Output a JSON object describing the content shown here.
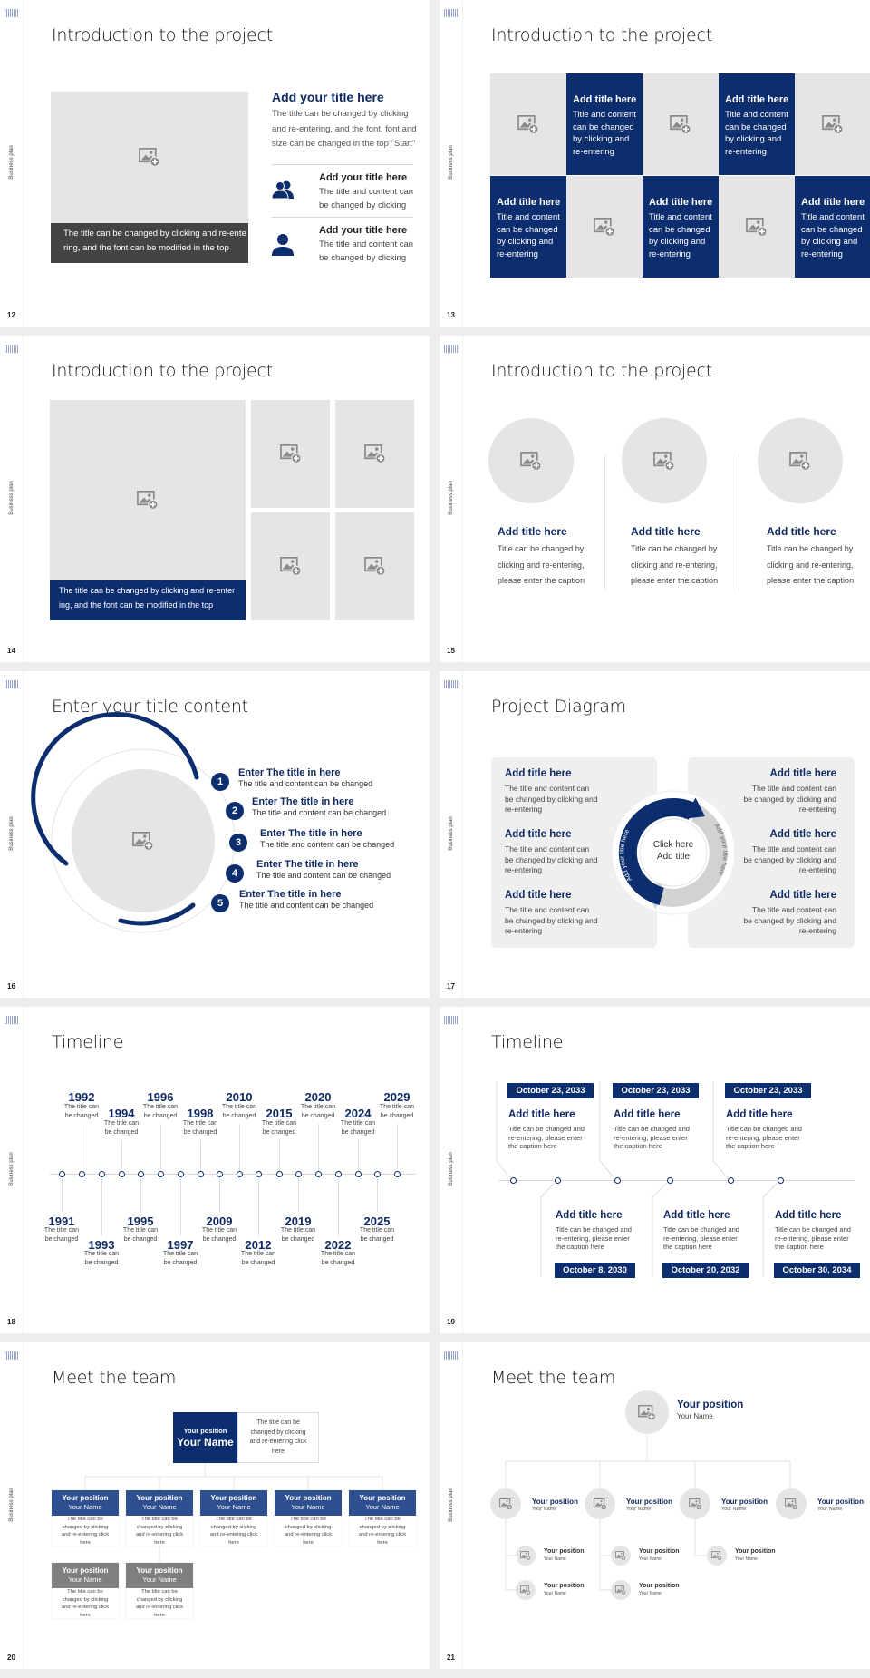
{
  "deck": {
    "side_label": "Business plan",
    "colors": {
      "navy": "#0c2d6e",
      "slate": "#2f5090",
      "placeholder": "#e6e4e4",
      "gray_header": "#7f7f7f"
    }
  },
  "s12": {
    "page": "12",
    "title": "Introduction to the project",
    "caption": [
      "The title can be changed by clicking and re-ente",
      "ring, and the font can be modified in the top"
    ],
    "heading": "Add your title here",
    "body": [
      "The title can be changed by clicking",
      "and re-entering, and the font, font and",
      "size can be changed in the top \"Start\""
    ],
    "items": [
      {
        "icon": "users-icon",
        "title": "Add your title here",
        "text": [
          "The title and content can",
          "be changed by clicking"
        ]
      },
      {
        "icon": "user-icon",
        "title": "Add your title here",
        "text": [
          "The title and content can",
          "be changed by clicking"
        ]
      }
    ]
  },
  "s13": {
    "page": "13",
    "title": "Introduction to the project",
    "card": {
      "title": "Add title here",
      "text": [
        "Title and content",
        "can be changed",
        "by clicking and",
        "re-entering"
      ]
    }
  },
  "s14": {
    "page": "14",
    "title": "Introduction to the project",
    "caption": [
      "The title can be changed by clicking and re-enter",
      "ing, and the font can be modified in the top"
    ]
  },
  "s15": {
    "page": "15",
    "title": "Introduction to the project",
    "cols": [
      {
        "title": "Add title here",
        "text": [
          "Title can be changed by",
          "clicking and re-entering,",
          "please enter the caption"
        ]
      },
      {
        "title": "Add title here",
        "text": [
          "Title can be changed by",
          "clicking and re-entering,",
          "please enter the caption"
        ]
      },
      {
        "title": "Add title here",
        "text": [
          "Title can be changed by",
          "clicking and re-entering,",
          "please enter the caption"
        ]
      }
    ]
  },
  "s16": {
    "page": "16",
    "title": "Enter your title content",
    "items": [
      {
        "num": "1",
        "title": "Enter The title in here",
        "text": "The title and content can be changed"
      },
      {
        "num": "2",
        "title": "Enter The title in here",
        "text": "The title and content can be changed"
      },
      {
        "num": "3",
        "title": "Enter The title in here",
        "text": "The title and content can be changed"
      },
      {
        "num": "4",
        "title": "Enter The title in here",
        "text": "The title and content can be changed"
      },
      {
        "num": "5",
        "title": "Enter The title in here",
        "text": "The title and content can be changed"
      }
    ]
  },
  "s17": {
    "page": "17",
    "title": "Project Diagram",
    "center": [
      "Click here",
      "Add title"
    ],
    "arc_left": "Add your title here",
    "arc_right": "Add your title here",
    "left": [
      {
        "title": "Add title here",
        "text": [
          "The title and content can",
          "be changed by clicking and",
          "re-entering"
        ]
      },
      {
        "title": "Add title here",
        "text": [
          "The title and content can",
          "be changed by clicking and",
          "re-entering"
        ]
      },
      {
        "title": "Add title here",
        "text": [
          "The title and content can",
          "be changed by clicking and",
          "re-entering"
        ]
      }
    ],
    "right": [
      {
        "title": "Add title here",
        "text": [
          "The title and content can",
          "be changed by clicking and",
          "re-entering"
        ]
      },
      {
        "title": "Add title here",
        "text": [
          "The title and content can",
          "be changed by clicking and",
          "re-entering"
        ]
      },
      {
        "title": "Add title here",
        "text": [
          "The title and content can",
          "be changed by clicking and",
          "re-entering"
        ]
      }
    ]
  },
  "s18": {
    "page": "18",
    "title": "Timeline",
    "events": [
      {
        "year": "1991",
        "text": [
          "The title can",
          "be changed"
        ]
      },
      {
        "year": "1992",
        "text": [
          "The title can",
          "be changed"
        ]
      },
      {
        "year": "1993",
        "text": [
          "The title can",
          "be changed"
        ]
      },
      {
        "year": "1994",
        "text": [
          "The title can",
          "be changed"
        ]
      },
      {
        "year": "1995",
        "text": [
          "The title can",
          "be changed"
        ]
      },
      {
        "year": "1996",
        "text": [
          "The title can",
          "be changed"
        ]
      },
      {
        "year": "1997",
        "text": [
          "The title can",
          "be changed"
        ]
      },
      {
        "year": "1998",
        "text": [
          "The title can",
          "be changed"
        ]
      },
      {
        "year": "2009",
        "text": [
          "The title can",
          "be changed"
        ]
      },
      {
        "year": "2010",
        "text": [
          "The title can",
          "be changed"
        ]
      },
      {
        "year": "2012",
        "text": [
          "The title can",
          "be changed"
        ]
      },
      {
        "year": "2015",
        "text": [
          "The title can",
          "be changed"
        ]
      },
      {
        "year": "2019",
        "text": [
          "The title can",
          "be changed"
        ]
      },
      {
        "year": "2020",
        "text": [
          "The title can",
          "be changed"
        ]
      },
      {
        "year": "2022",
        "text": [
          "The title can",
          "be changed"
        ]
      },
      {
        "year": "2024",
        "text": [
          "The title can",
          "be changed"
        ]
      },
      {
        "year": "2025",
        "text": [
          "The title can",
          "be changed"
        ]
      },
      {
        "year": "2029",
        "text": [
          "The title can",
          "be changed"
        ]
      }
    ]
  },
  "s19": {
    "page": "19",
    "title": "Timeline",
    "top": [
      {
        "date": "October 23, 2033",
        "title": "Add title here",
        "text": [
          "Title can be changed and",
          "re-entering, please enter",
          "the caption here"
        ]
      },
      {
        "date": "October 23, 2033",
        "title": "Add title here",
        "text": [
          "Title can be changed and",
          "re-entering, please enter",
          "the caption here"
        ]
      },
      {
        "date": "October 23, 2033",
        "title": "Add title here",
        "text": [
          "Title can be changed and",
          "re-entering, please enter",
          "the caption here"
        ]
      }
    ],
    "bottom": [
      {
        "date": "October 8, 2030",
        "title": "Add title here",
        "text": [
          "Title can be changed and",
          "re-entering, please enter",
          "the caption here"
        ]
      },
      {
        "date": "October 20, 2032",
        "title": "Add title here",
        "text": [
          "Title can be changed and",
          "re-entering, please enter",
          "the caption here"
        ]
      },
      {
        "date": "October 30, 2034",
        "title": "Add title here",
        "text": [
          "Title can be changed and",
          "re-entering, please enter",
          "the caption here"
        ]
      }
    ]
  },
  "s20": {
    "page": "20",
    "title": "Meet the team",
    "lead": {
      "position": "Your position",
      "name": "Your Name",
      "note": [
        "The title can be",
        "changed by clicking",
        "and re-entering click",
        "here"
      ]
    },
    "members": [
      {
        "position": "Your position",
        "name": "Your Name",
        "note": [
          "The title can be",
          "changed by clicking",
          "and re-entering click",
          "here"
        ]
      },
      {
        "position": "Your position",
        "name": "Your Name",
        "note": [
          "The title can be",
          "changed by clicking",
          "and re-entering click",
          "here"
        ]
      },
      {
        "position": "Your position",
        "name": "Your Name",
        "note": [
          "The title can be",
          "changed by clicking",
          "and re-entering click",
          "here"
        ]
      },
      {
        "position": "Your position",
        "name": "Your Name",
        "note": [
          "The title can be",
          "changed by clicking",
          "and re-entering click",
          "here"
        ]
      },
      {
        "position": "Your position",
        "name": "Your Name",
        "note": [
          "The title can be",
          "changed by clicking",
          "and re-entering click",
          "here"
        ]
      },
      {
        "position": "Your position",
        "name": "Your Name",
        "note": [
          "The title can be",
          "changed by clicking",
          "and re-entering click",
          "here"
        ]
      },
      {
        "position": "Your position",
        "name": "Your Name",
        "note": [
          "The title can be",
          "changed by clicking",
          "and re-entering click",
          "here"
        ]
      }
    ]
  },
  "s21": {
    "page": "21",
    "title": "Meet the team",
    "lead": {
      "position": "Your position",
      "name": "Your Name"
    },
    "level2": [
      {
        "position": "Your position",
        "name": "Your Name"
      },
      {
        "position": "Your position",
        "name": "Your Name"
      },
      {
        "position": "Your position",
        "name": "Your Name"
      },
      {
        "position": "Your position",
        "name": "Your Name"
      }
    ],
    "level3": [
      {
        "position": "Your position",
        "name": "Your Name"
      },
      {
        "position": "Your position",
        "name": "Your Name"
      },
      {
        "position": "Your position",
        "name": "Your Name"
      },
      {
        "position": "Your position",
        "name": "Your Name"
      },
      {
        "position": "Your position",
        "name": "Your Name"
      }
    ]
  }
}
